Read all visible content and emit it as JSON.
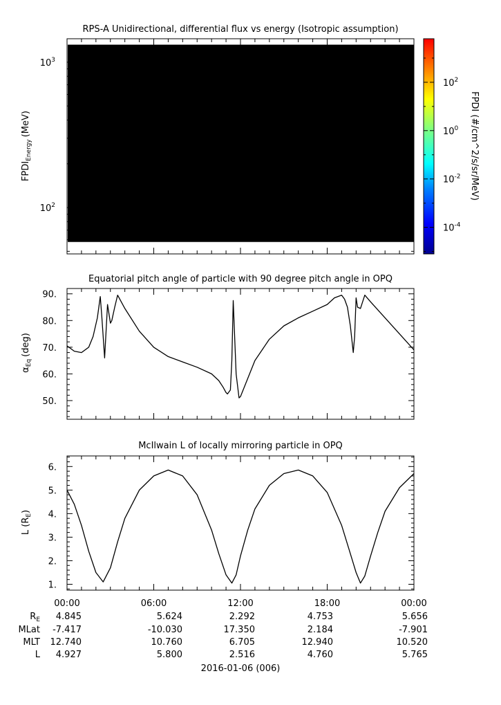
{
  "colors": {
    "background": "#ffffff",
    "axis": "#000000",
    "spectrogram_fill": "#000000",
    "line": "#000000",
    "colorbar": [
      "#00008f",
      "#0000ff",
      "#0080ff",
      "#00ffff",
      "#80ff80",
      "#ffff00",
      "#ff8000",
      "#ff0000"
    ]
  },
  "chart_data": [
    {
      "type": "heatmap",
      "title": "RPS-A Unidirectional, differential flux vs energy (Isotropic assumption)",
      "ylabel_main": "FPDI",
      "ylabel_sub": "Energy",
      "ylabel_unit": "(MeV)",
      "yscale": "log",
      "ylim": [
        48,
        1450
      ],
      "yticks": [
        {
          "value": 100,
          "base": "10",
          "exp": "2"
        },
        {
          "value": 1000,
          "base": "10",
          "exp": "3"
        }
      ],
      "energy_range": [
        58,
        1320
      ],
      "fill_state": "all black (no valid data)",
      "colorbar": {
        "label": "FPDI (#/cm^2/s/sr/MeV)",
        "scale": "log",
        "range_exp": [
          -5.1,
          3.8
        ],
        "ticks": [
          {
            "exp": 2,
            "label_base": "10",
            "label_exp": "2"
          },
          {
            "exp": 0,
            "label_base": "10",
            "label_exp": "0"
          },
          {
            "exp": -2,
            "label_base": "10",
            "label_exp": "-2"
          },
          {
            "exp": -4,
            "label_base": "10",
            "label_exp": "-4"
          }
        ]
      }
    },
    {
      "type": "line",
      "title": "Equatorial pitch angle of particle with 90 degree pitch angle in OPQ",
      "ylabel_main": "α",
      "ylabel_sub": "Eq",
      "ylabel_unit": "(deg)",
      "ylim": [
        43,
        92
      ],
      "yticks": [
        50,
        60,
        70,
        80,
        90
      ],
      "ytick_labels": [
        "50.",
        "60.",
        "70.",
        "80.",
        "90."
      ],
      "x_hours": [
        0,
        0.5,
        1.0,
        1.5,
        1.8,
        2.1,
        2.3,
        2.4,
        2.6,
        2.8,
        3.0,
        3.1,
        3.3,
        3.5,
        4.0,
        5.0,
        6.0,
        7.0,
        8.0,
        9.0,
        10.0,
        10.5,
        10.8,
        11.0,
        11.1,
        11.3,
        11.4,
        11.5,
        11.7,
        11.9,
        12.0,
        13.0,
        14.0,
        15.0,
        16.0,
        17.0,
        18.0,
        18.5,
        19.0,
        19.2,
        19.4,
        19.6,
        19.8,
        19.9,
        20.0,
        20.1,
        20.3,
        20.6,
        21.0,
        22.0,
        23.0,
        24.0
      ],
      "y_deg": [
        70.5,
        68.5,
        68.0,
        70.0,
        74.0,
        81.0,
        89.0,
        82.0,
        66.0,
        86.0,
        79.0,
        80.0,
        85.0,
        89.5,
        84.5,
        76.0,
        70.0,
        66.5,
        64.5,
        62.5,
        60.0,
        57.5,
        55.0,
        53.0,
        52.5,
        54.0,
        65.0,
        87.5,
        60.0,
        51.0,
        51.5,
        65.0,
        73.0,
        78.0,
        81.0,
        83.5,
        86.0,
        88.5,
        89.5,
        88.0,
        85.0,
        78.0,
        68.0,
        74.0,
        88.5,
        85.0,
        84.5,
        89.5,
        87.0,
        81.0,
        75.0,
        69.0
      ]
    },
    {
      "type": "line",
      "title": "McIlwain L of locally mirroring particle in OPQ",
      "ylabel_main": "L (R",
      "ylabel_sub": "E",
      "ylabel_unit": ")",
      "ylim": [
        0.75,
        6.45
      ],
      "yticks": [
        1,
        2,
        3,
        4,
        5,
        6
      ],
      "ytick_labels": [
        "1.",
        "2.",
        "3.",
        "4.",
        "5.",
        "6."
      ],
      "x_hours": [
        0,
        0.5,
        1.0,
        1.5,
        2.0,
        2.5,
        3.0,
        3.5,
        4.0,
        5.0,
        6.0,
        7.0,
        8.0,
        9.0,
        10.0,
        10.5,
        11.0,
        11.4,
        11.7,
        12.0,
        12.5,
        13.0,
        14.0,
        15.0,
        16.0,
        17.0,
        18.0,
        19.0,
        19.5,
        20.0,
        20.3,
        20.6,
        21.0,
        21.5,
        22.0,
        23.0,
        24.0
      ],
      "y_L": [
        5.0,
        4.4,
        3.5,
        2.4,
        1.5,
        1.1,
        1.7,
        2.8,
        3.8,
        5.0,
        5.6,
        5.85,
        5.6,
        4.8,
        3.3,
        2.3,
        1.4,
        1.05,
        1.4,
        2.2,
        3.3,
        4.2,
        5.2,
        5.7,
        5.85,
        5.6,
        4.9,
        3.5,
        2.5,
        1.5,
        1.05,
        1.35,
        2.2,
        3.2,
        4.1,
        5.1,
        5.7
      ]
    }
  ],
  "x_axis": {
    "tick_labels": [
      "00:00",
      "06:00",
      "12:00",
      "18:00",
      "00:00"
    ],
    "tick_hours": [
      0,
      6,
      12,
      18,
      24
    ],
    "date_label": "2016-01-06 (006)"
  },
  "ephemeris": {
    "row_labels": [
      {
        "base": "R",
        "sub": "E"
      },
      {
        "base": "MLat",
        "sub": ""
      },
      {
        "base": "MLT",
        "sub": ""
      },
      {
        "base": "L",
        "sub": ""
      }
    ],
    "rows": [
      [
        "4.845",
        "5.624",
        "2.292",
        "4.753",
        "5.656"
      ],
      [
        "-7.417",
        "-10.030",
        "17.350",
        "2.184",
        "-7.901"
      ],
      [
        "12.740",
        "10.760",
        "6.705",
        "12.940",
        "10.520"
      ],
      [
        "4.927",
        "5.800",
        "2.516",
        "4.760",
        "5.765"
      ]
    ]
  }
}
